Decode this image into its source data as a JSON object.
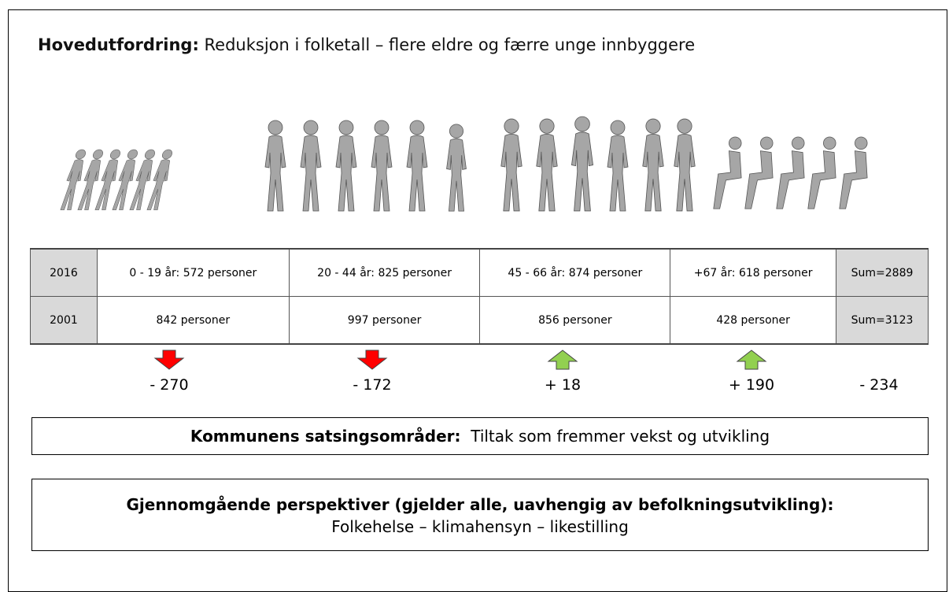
{
  "heading": {
    "bold": "Hovedutfordring:",
    "text": "Reduksjon i folketall – flere eldre og færre unge innbyggere"
  },
  "table": {
    "rows": [
      [
        "2016",
        "0 - 19 år:  572 personer",
        "20 - 44 år:   825 personer",
        "45 - 66 år:  874 personer",
        "+67 år:  618 personer",
        "Sum=2889"
      ],
      [
        "2001",
        "842 personer",
        "997 personer",
        "856 personer",
        "428 personer",
        "Sum=3123"
      ]
    ]
  },
  "changes": [
    "- 270",
    "- 172",
    "+ 18",
    "+ 190",
    "- 234"
  ],
  "box1": {
    "bold": "Kommunens satsingsområder:",
    "text": "Tiltak som fremmer vekst og utvikling"
  },
  "box2": {
    "bold": "Gjennomgående perspektiver (gjelder alle, uavhengig av befolkningsutvikling):",
    "text": "Folkehelse – klimahensyn – likestilling"
  }
}
